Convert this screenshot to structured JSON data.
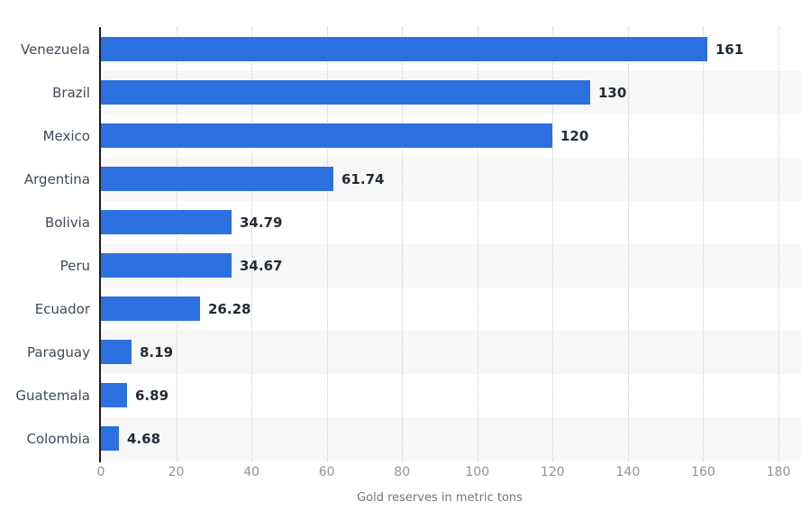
{
  "chart_data": {
    "type": "bar",
    "orientation": "horizontal",
    "categories": [
      "Venezuela",
      "Brazil",
      "Mexico",
      "Argentina",
      "Bolivia",
      "Peru",
      "Ecuador",
      "Paraguay",
      "Guatemala",
      "Colombia"
    ],
    "values": [
      161,
      130,
      120,
      61.74,
      34.79,
      34.67,
      26.28,
      8.19,
      6.89,
      4.68
    ],
    "value_labels": [
      "161",
      "130",
      "120",
      "61.74",
      "34.79",
      "34.67",
      "26.28",
      "8.19",
      "6.89",
      "4.68"
    ],
    "title": "",
    "xlabel": "Gold reserves in metric tons",
    "ylabel": "",
    "xlim": [
      0,
      180
    ],
    "x_ticks": [
      0,
      20,
      40,
      60,
      80,
      100,
      120,
      140,
      160,
      180
    ],
    "grid": "vertical-dotted",
    "legend": "none",
    "bar_color": "#2c6fde",
    "stripe_color": "#f7f7f7",
    "gridline_color": "#c9c9c9",
    "axis_line_color": "#1c1c1c",
    "category_label_color": "#3e4c59",
    "value_label_color": "#222b36",
    "tick_label_color": "#8f9499",
    "axis_title_color": "#70777e"
  }
}
